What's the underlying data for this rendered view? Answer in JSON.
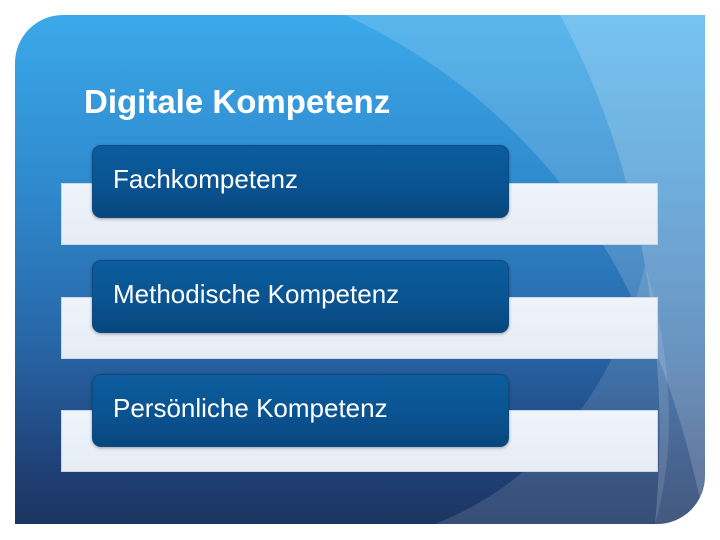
{
  "slide": {
    "title": "Digitale Kompetenz",
    "items": [
      {
        "label": "Fachkompetenz"
      },
      {
        "label": "Methodische Kompetenz"
      },
      {
        "label": "Persönliche Kompetenz"
      }
    ]
  },
  "colors": {
    "background_top": "#3aa9ea",
    "background_bottom": "#1c3562",
    "box": "#0a5290",
    "bar": "#eef4fb"
  }
}
